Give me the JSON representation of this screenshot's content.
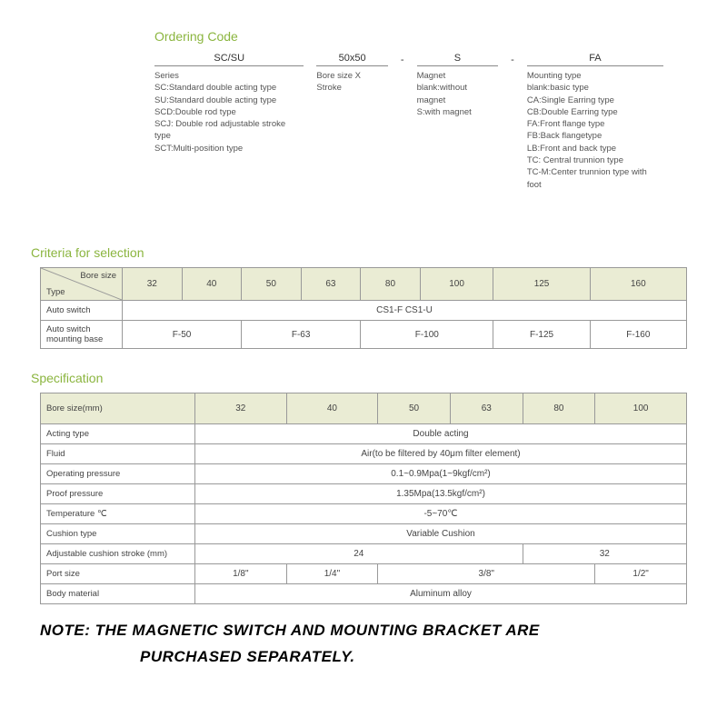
{
  "ordering": {
    "title": "Ordering Code",
    "columns": [
      {
        "header": "SC/SU",
        "lines": [
          "Series",
          "SC:Standard double acting type",
          "SU:Standard double acting type",
          "SCD:Double rod type",
          "SCJ: Double rod adjustable stroke type",
          "SCT:Multi-position type"
        ]
      },
      {
        "header": "50x50",
        "lines": [
          "Bore size X Stroke"
        ]
      },
      {
        "header": "S",
        "lines": [
          "Magnet",
          "blank:without magnet",
          "S:with magnet"
        ]
      },
      {
        "header": "FA",
        "lines": [
          "Mounting type",
          "blank:basic type",
          "CA:Single Earring type",
          "CB:Double Earring type",
          "FA:Front flange type",
          "FB:Back flangetype",
          "LB:Front and back type",
          "TC: Central trunnion type",
          "TC-M:Center trunnion type with foot"
        ]
      }
    ]
  },
  "criteria": {
    "title": "Criteria for selection",
    "diag_top": "Bore size",
    "diag_bot": "Type",
    "bore_sizes": [
      "32",
      "40",
      "50",
      "63",
      "80",
      "100",
      "125",
      "160"
    ],
    "row1_label": "Auto switch",
    "row1_value": "CS1-F  CS1-U",
    "row2_label": "Auto switch mounting base",
    "row2_cells": [
      {
        "span": 2,
        "text": "F-50"
      },
      {
        "span": 2,
        "text": "F-63"
      },
      {
        "span": 2,
        "text": "F-100"
      },
      {
        "span": 1,
        "text": "F-125"
      },
      {
        "span": 1,
        "text": "F-160"
      }
    ]
  },
  "spec": {
    "title": "Specification",
    "bore_label": "Bore size(mm)",
    "bore_sizes": [
      "32",
      "40",
      "50",
      "63",
      "80",
      "100"
    ],
    "rows": [
      {
        "label": "Acting type",
        "cells": [
          {
            "span": 6,
            "text": "Double acting"
          }
        ]
      },
      {
        "label": "Fluid",
        "cells": [
          {
            "span": 6,
            "text": "Air(to be filtered by 40μm filter element)"
          }
        ]
      },
      {
        "label": "Operating pressure",
        "cells": [
          {
            "span": 6,
            "text": "0.1~0.9Mpa(1~9kgf/cm²)"
          }
        ]
      },
      {
        "label": "Proof pressure",
        "cells": [
          {
            "span": 6,
            "text": "1.35Mpa(13.5kgf/cm²)"
          }
        ]
      },
      {
        "label": "Temperature ℃",
        "cells": [
          {
            "span": 6,
            "text": "-5~70℃"
          }
        ]
      },
      {
        "label": "Cushion type",
        "cells": [
          {
            "span": 6,
            "text": "Variable Cushion"
          }
        ]
      },
      {
        "label": "Adjustable cushion stroke (mm)",
        "cells": [
          {
            "span": 4,
            "text": "24"
          },
          {
            "span": 2,
            "text": "32"
          }
        ]
      },
      {
        "label": "Port size",
        "cells": [
          {
            "span": 1,
            "text": "1/8\""
          },
          {
            "span": 1,
            "text": "1/4\""
          },
          {
            "span": 3,
            "text": "3/8\""
          },
          {
            "span": 1,
            "text": "1/2\""
          }
        ]
      },
      {
        "label": "Body material",
        "cells": [
          {
            "span": 6,
            "text": "Aluminum alloy"
          }
        ]
      }
    ]
  },
  "note": {
    "line1": "NOTE: THE MAGNETIC SWITCH AND MOUNTING BRACKET ARE",
    "line2": "PURCHASED SEPARATELY."
  },
  "colors": {
    "accent": "#8bb53f",
    "header_bg": "#eaecd4",
    "border": "#999999",
    "text": "#555555"
  }
}
